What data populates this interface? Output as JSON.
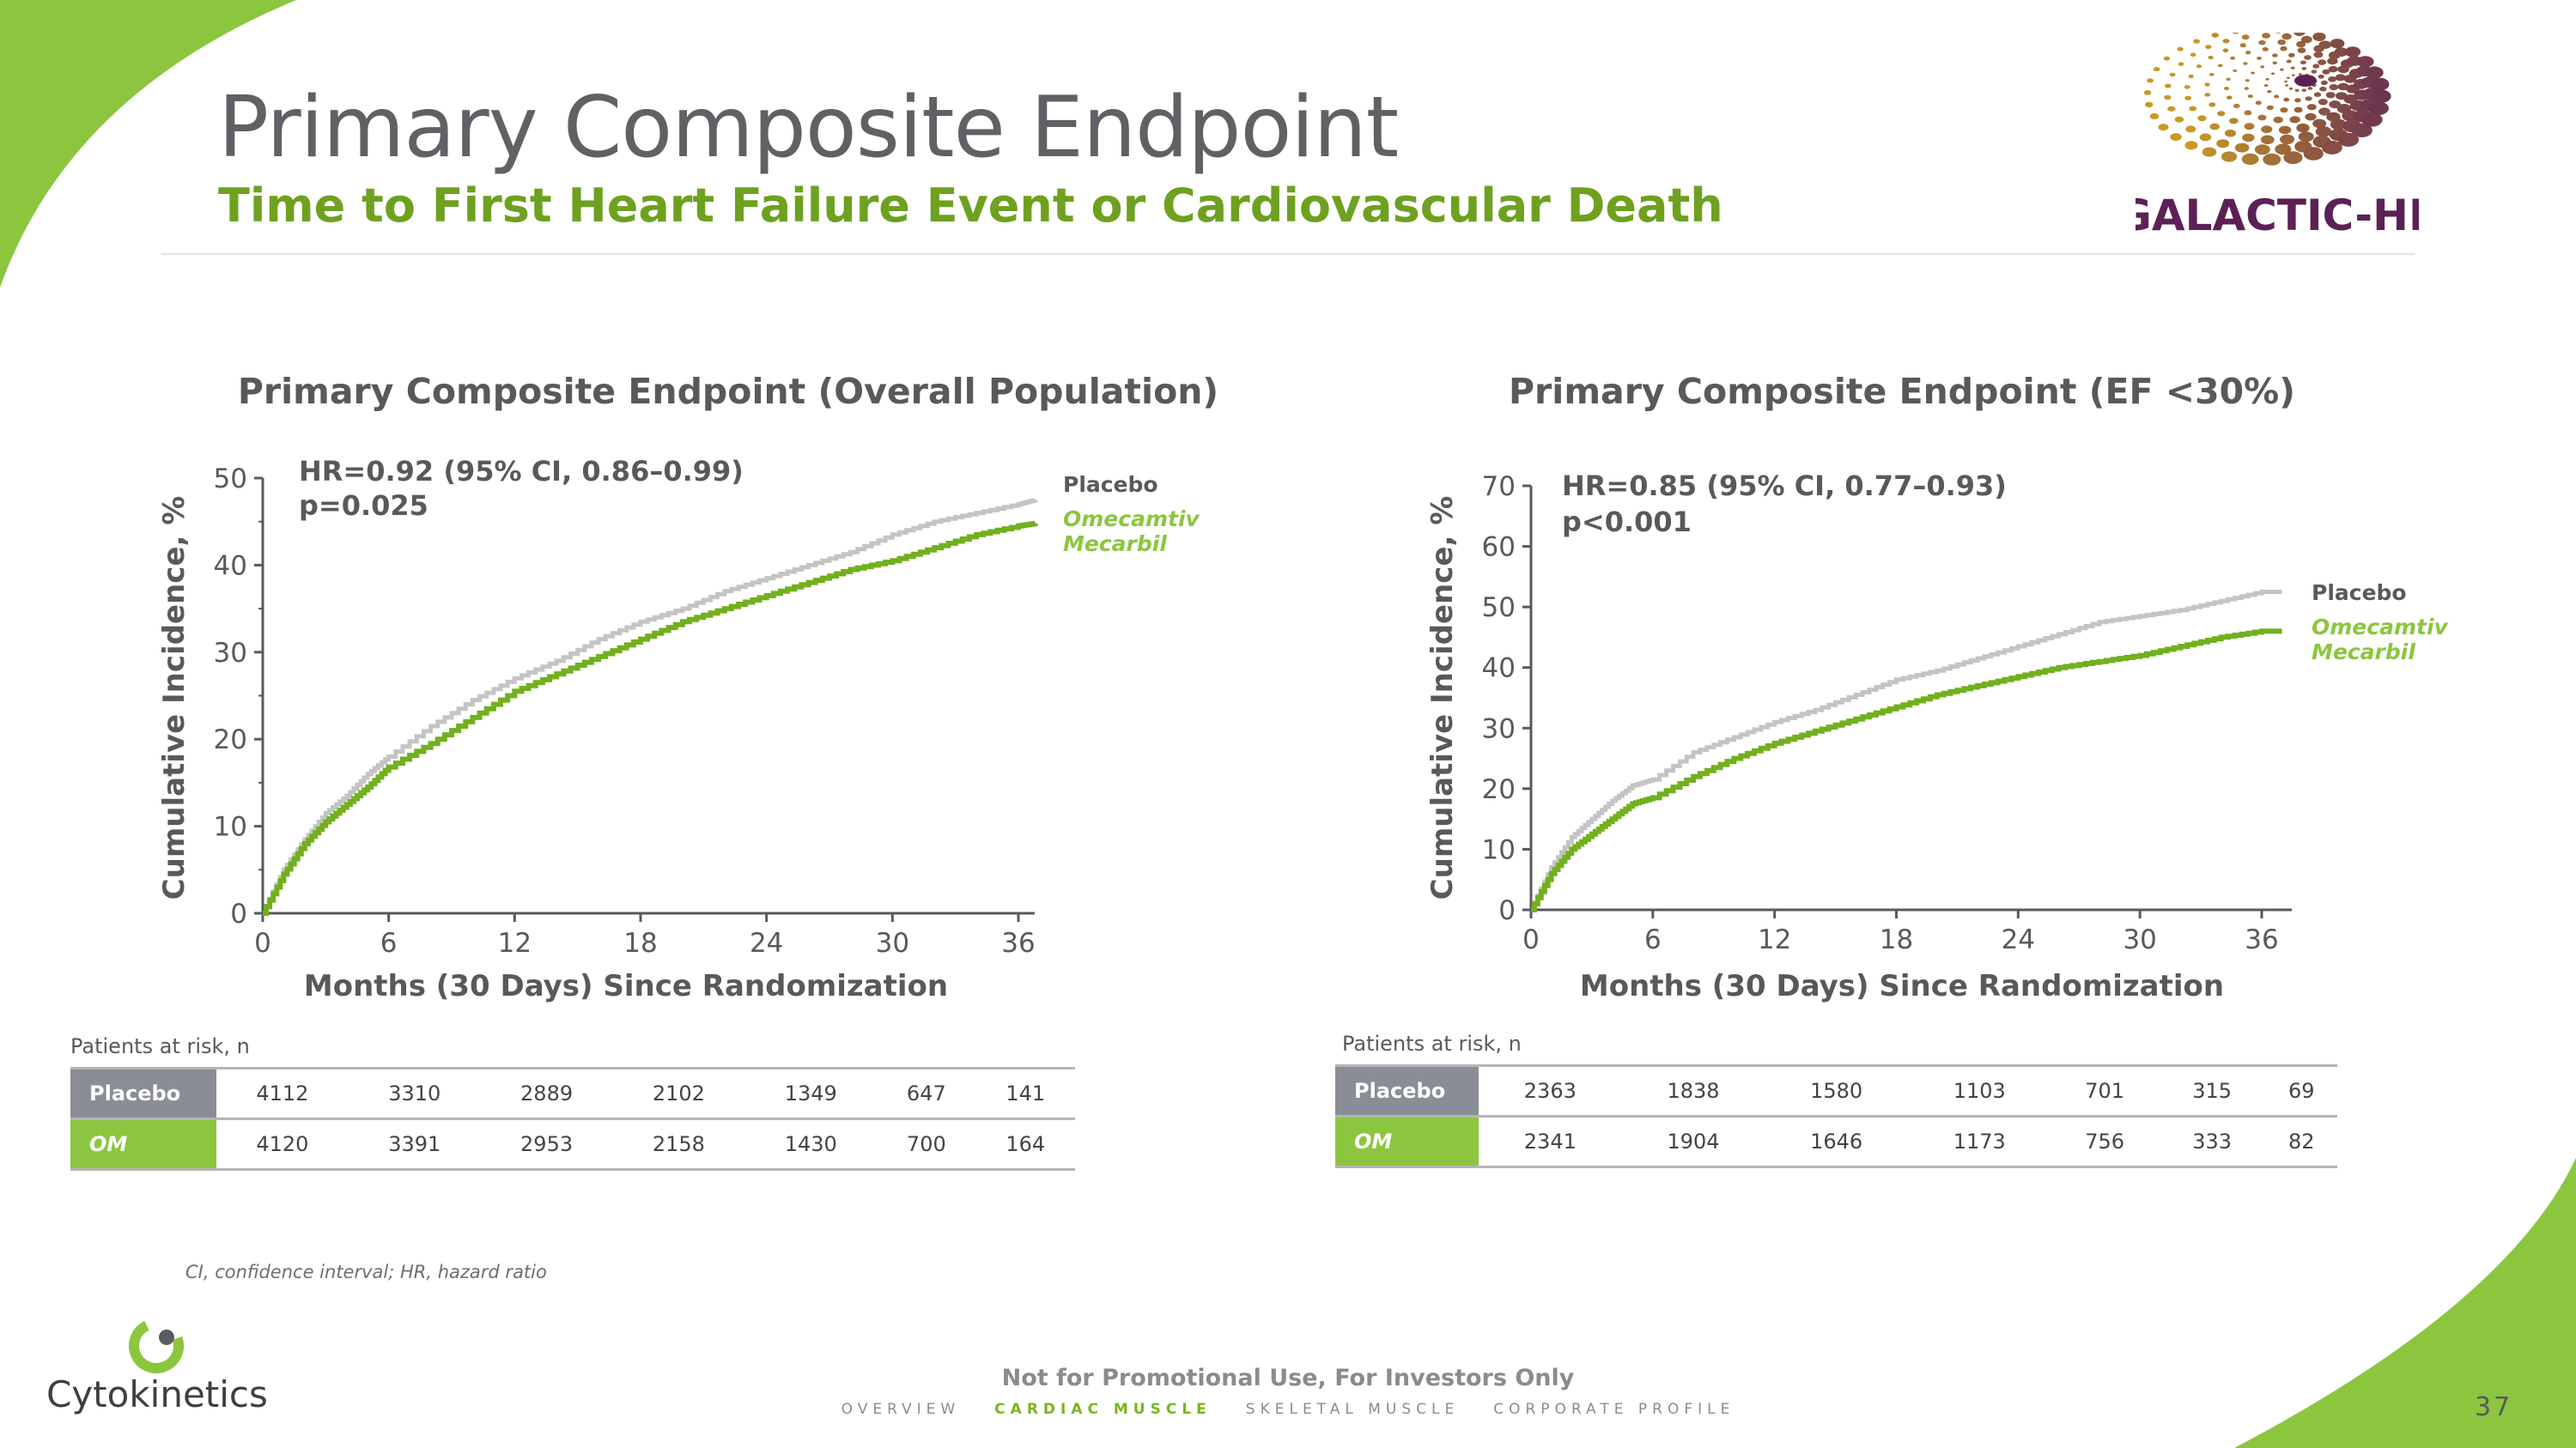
{
  "header": {
    "title": "Primary Composite Endpoint",
    "subtitle": "Time to First Heart Failure Event or Cardiovascular Death"
  },
  "logos": {
    "trial": "GALACTIC-HF",
    "company": "Cytokinetics"
  },
  "colors": {
    "accent_green": "#7ab51d",
    "placebo_line": "#c4c4c4",
    "om_line": "#72b01e",
    "placebo_cell": "#8a8d96",
    "om_cell": "#8cc63f",
    "trial_logo_purple": "#5b2157"
  },
  "chart_data": [
    {
      "type": "line",
      "title": "Primary Composite Endpoint (Overall Population)",
      "xlabel": "Months (30 Days) Since Randomization",
      "ylabel": "Cumulative Incidence, %",
      "xlim": [
        0,
        37
      ],
      "ylim": [
        0,
        50
      ],
      "xticks": [
        0,
        6,
        12,
        18,
        24,
        30,
        36
      ],
      "yticks": [
        0,
        10,
        20,
        30,
        40,
        50
      ],
      "annotation": [
        "HR=0.92 (95% CI, 0.86–0.99)",
        "p=0.025"
      ],
      "legend_placement": "right-end-of-lines",
      "series": [
        {
          "name": "Placebo",
          "color": "#c4c4c4",
          "x": [
            0,
            1,
            2,
            3,
            4,
            5,
            6,
            8,
            10,
            12,
            14,
            16,
            18,
            20,
            22,
            24,
            26,
            28,
            30,
            32,
            34,
            36,
            36.8
          ],
          "y": [
            0,
            5,
            8.5,
            11.5,
            13.5,
            16,
            18,
            21.5,
            24.5,
            27,
            29,
            31.5,
            33.5,
            35,
            37,
            38.5,
            40,
            41.5,
            43.5,
            45,
            46,
            47,
            47.5
          ]
        },
        {
          "name": "Omecamtiv Mecarbil",
          "color": "#72b01e",
          "x": [
            0,
            1,
            2,
            3,
            4,
            5,
            6,
            8,
            10,
            12,
            14,
            16,
            18,
            20,
            22,
            24,
            26,
            28,
            30,
            32,
            34,
            36,
            36.8
          ],
          "y": [
            0,
            4.5,
            8,
            10.5,
            12.5,
            14.5,
            16.8,
            19.5,
            22.5,
            25.5,
            27.5,
            29.5,
            31.5,
            33.5,
            35,
            36.5,
            38,
            39.5,
            40.5,
            42,
            43.5,
            44.5,
            44.8
          ]
        }
      ],
      "risk_table": {
        "label": "Patients at risk, n",
        "rows": [
          {
            "group": "Placebo",
            "values": [
              "4112",
              "3310",
              "2889",
              "2102",
              "1349",
              "647",
              "141"
            ]
          },
          {
            "group": "OM",
            "values": [
              "4120",
              "3391",
              "2953",
              "2158",
              "1430",
              "700",
              "164"
            ]
          }
        ]
      }
    },
    {
      "type": "line",
      "title": "Primary Composite Endpoint (EF <30%)",
      "xlabel": "Months (30 Days) Since Randomization",
      "ylabel": "Cumulative Incidence, %",
      "xlim": [
        0,
        37.5
      ],
      "ylim": [
        0,
        70
      ],
      "xticks": [
        0,
        6,
        12,
        18,
        24,
        30,
        36
      ],
      "yticks": [
        0,
        10,
        20,
        30,
        40,
        50,
        60,
        70
      ],
      "annotation": [
        "HR=0.85 (95% CI, 0.77–0.93)",
        "p<0.001"
      ],
      "legend_placement": "right-end-of-lines",
      "series": [
        {
          "name": "Placebo",
          "color": "#c4c4c4",
          "x": [
            0,
            1,
            2,
            3,
            4,
            5,
            6,
            8,
            10,
            12,
            14,
            16,
            18,
            20,
            22,
            24,
            26,
            28,
            30,
            32,
            34,
            36,
            37
          ],
          "y": [
            0,
            7,
            12,
            15,
            18,
            20.5,
            21.5,
            26,
            28.5,
            31,
            33,
            35.5,
            38,
            39.5,
            41.5,
            43.5,
            45.5,
            47.5,
            48.5,
            49.5,
            51,
            52.5,
            52.5
          ]
        },
        {
          "name": "Omecamtiv Mecarbil",
          "color": "#72b01e",
          "x": [
            0,
            1,
            2,
            3,
            4,
            5,
            6,
            8,
            10,
            12,
            14,
            16,
            18,
            20,
            22,
            24,
            26,
            28,
            30,
            32,
            34,
            36,
            37
          ],
          "y": [
            0,
            6,
            10,
            12.5,
            15,
            17.5,
            18.5,
            22,
            25,
            27.5,
            29.5,
            31.5,
            33.5,
            35.5,
            37,
            38.5,
            40,
            41,
            42,
            43.5,
            45,
            46,
            46
          ]
        }
      ],
      "risk_table": {
        "label": "Patients at risk, n",
        "rows": [
          {
            "group": "Placebo",
            "values": [
              "2363",
              "1838",
              "1580",
              "1103",
              "701",
              "315",
              "69"
            ]
          },
          {
            "group": "OM",
            "values": [
              "2341",
              "1904",
              "1646",
              "1173",
              "756",
              "333",
              "82"
            ]
          }
        ]
      }
    }
  ],
  "footer": {
    "footnote": "CI, confidence interval; HR, hazard ratio",
    "disclaimer": "Not for Promotional Use, For Investors Only",
    "nav": [
      "OVERVIEW",
      "CARDIAC MUSCLE",
      "SKELETAL MUSCLE",
      "CORPORATE PROFILE"
    ],
    "active_nav": "CARDIAC MUSCLE",
    "page_number": "37"
  }
}
